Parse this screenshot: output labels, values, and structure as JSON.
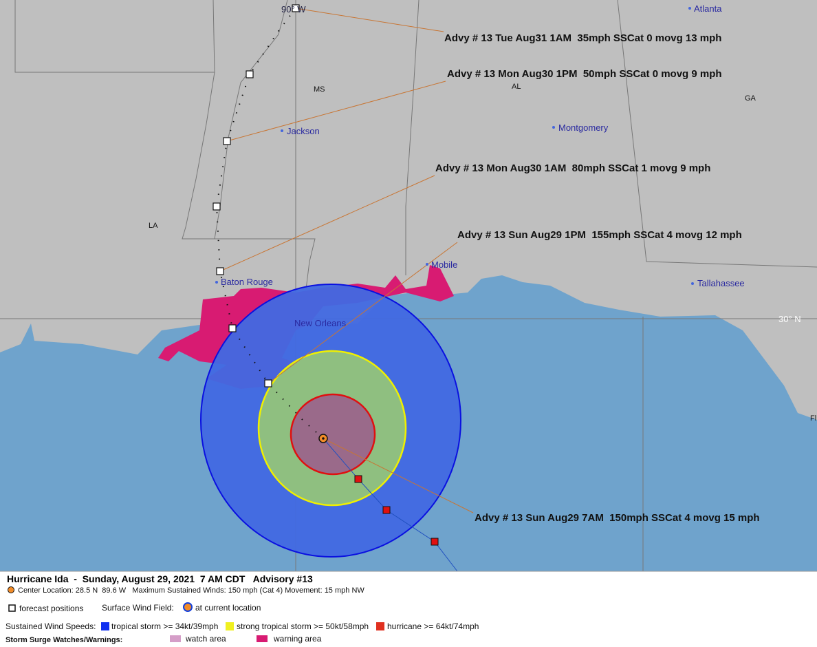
{
  "map": {
    "labels": {
      "lon_90w": "90° W",
      "atlanta": "Atlanta",
      "ms": "MS",
      "al": "AL",
      "ga": "GA",
      "la": "LA",
      "jackson": "Jackson",
      "montgomery": "Montgomery",
      "mobile": "Mobile",
      "baton_rouge": "Baton Rouge",
      "new_orleans": "New Orleans",
      "tallahassee": "Tallahassee",
      "lat_30n": "30° N",
      "fl": "Fl"
    }
  },
  "advisories": [
    "Advy # 13 Tue Aug31 1AM  35mph SSCat 0 movg 13 mph",
    "Advy # 13 Mon Aug30 1PM  50mph SSCat 0 movg 9 mph",
    "Advy # 13 Mon Aug30 1AM  80mph SSCat 1 movg 9 mph",
    "Advy # 13 Sun Aug29 1PM  155mph SSCat 4 movg 12 mph",
    "Advy # 13 Sun Aug29 7AM  150mph SSCat 4 movg 15 mph"
  ],
  "legend": {
    "title": "Hurricane Ida  -  Sunday, August 29, 2021  7 AM CDT   Advisory #13",
    "details": "Center Location: 28.5 N  89.6 W   Maximum Sustained Winds: 150 mph (Cat 4) Movement: 15 mph NW",
    "forecast_positions": "forecast positions",
    "surface_wind_field": "Surface Wind Field:",
    "at_current_location": "at current location",
    "sustained_wind_speeds": "Sustained Wind Speeds:",
    "tropical_storm": "tropical storm >= 34kt/39mph",
    "strong_tropical_storm": "strong tropical storm >= 50kt/58mph",
    "hurricane": "hurricane >= 64kt/74mph",
    "storm_surge": "Storm Surge Watches/Warnings:",
    "watch_area": "watch area",
    "warning_area": "warning area"
  }
}
